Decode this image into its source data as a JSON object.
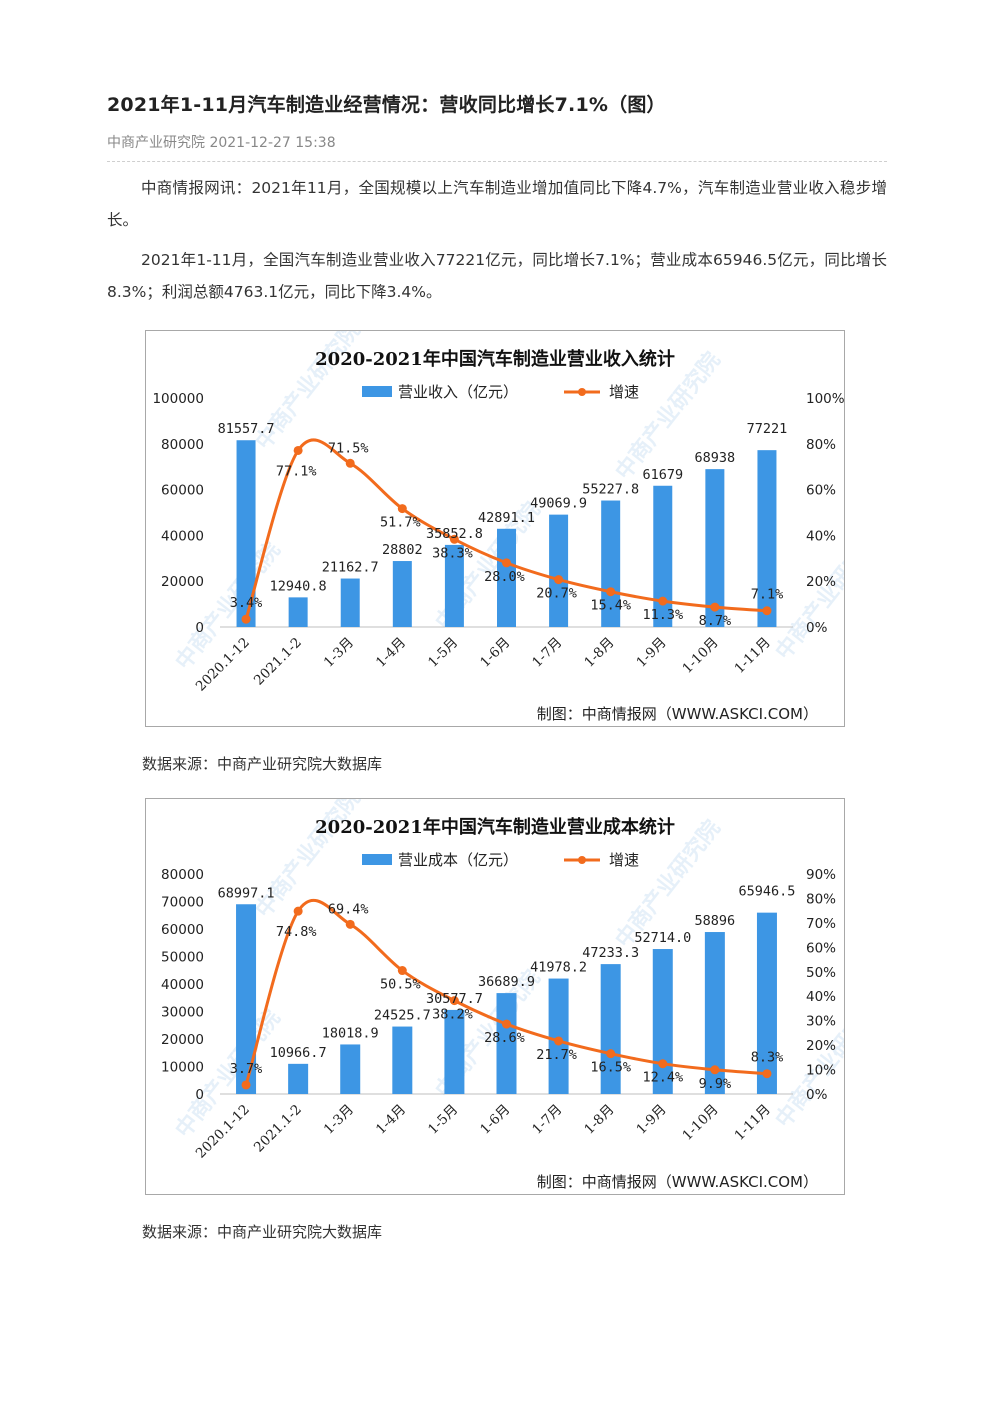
{
  "article": {
    "title": "2021年1-11月汽车制造业经营情况：营收同比增长7.1%（图）",
    "source_line": "中商产业研究院 2021-12-27 15:38",
    "paragraphs": [
      "中商情报网讯：2021年11月，全国规模以上汽车制造业增加值同比下降4.7%，汽车制造业营业收入稳步增长。",
      "2021年1-11月，全国汽车制造业营业收入77221亿元，同比增长7.1%；营业成本65946.5亿元，同比增长8.3%；利润总额4763.1亿元，同比下降3.4%。"
    ],
    "data_source_1": "数据来源：中商产业研究院大数据库",
    "data_source_2": "数据来源：中商产业研究院大数据库"
  },
  "watermark": {
    "text": "中商产业研究院"
  },
  "colors": {
    "bar": "#3d96e4",
    "line": "#f26b1d",
    "axis_text": "#222222"
  },
  "chart_data": [
    {
      "type": "bar",
      "title": "2020-2021年中国汽车制造业营业收入统计",
      "credit": "制图：中商情报网（WWW.ASKCI.COM）",
      "categories": [
        "2020.1-12",
        "2021.1-2",
        "1-3月",
        "1-4月",
        "1-5月",
        "1-6月",
        "1-7月",
        "1-8月",
        "1-9月",
        "1-10月",
        "1-11月"
      ],
      "series": [
        {
          "name": "营业收入（亿元）",
          "type": "bar",
          "axis": "left",
          "values": [
            81557.7,
            12940.8,
            21162.7,
            28802,
            35852.8,
            42891.1,
            49069.9,
            55227.8,
            61679,
            68938,
            77221
          ],
          "labels": [
            "81557.7",
            "12940.8",
            "21162.7",
            "28802",
            "35852.8",
            "42891.1",
            "49069.9",
            "55227.8",
            "61679",
            "68938",
            "77221"
          ]
        },
        {
          "name": "增速",
          "type": "line",
          "axis": "right",
          "values": [
            3.4,
            77.1,
            71.5,
            51.7,
            38.3,
            28.0,
            20.7,
            15.4,
            11.3,
            8.7,
            7.1
          ],
          "labels": [
            "3.4%",
            "77.1%",
            "71.5%",
            "51.7%",
            "38.3%",
            "28.0%",
            "20.7%",
            "15.4%",
            "11.3%",
            "8.7%",
            "7.1%"
          ]
        }
      ],
      "ylim_left": [
        0,
        100000
      ],
      "ylim_right": [
        0,
        100
      ],
      "left_ticks": [
        "0",
        "20000",
        "40000",
        "60000",
        "80000",
        "100000"
      ],
      "right_ticks": [
        "0%",
        "20%",
        "40%",
        "60%",
        "80%",
        "100%"
      ],
      "legend_position": "top-center",
      "grid": false
    },
    {
      "type": "bar",
      "title": "2020-2021年中国汽车制造业营业成本统计",
      "credit": "制图：中商情报网（WWW.ASKCI.COM）",
      "categories": [
        "2020.1-12",
        "2021.1-2",
        "1-3月",
        "1-4月",
        "1-5月",
        "1-6月",
        "1-7月",
        "1-8月",
        "1-9月",
        "1-10月",
        "1-11月"
      ],
      "series": [
        {
          "name": "营业成本（亿元）",
          "type": "bar",
          "axis": "left",
          "values": [
            68997.1,
            10966.7,
            18018.9,
            24525.7,
            30577.7,
            36689.9,
            41978.2,
            47233.3,
            52714.0,
            58896,
            65946.5
          ],
          "labels": [
            "68997.1",
            "10966.7",
            "18018.9",
            "24525.7",
            "30577.7",
            "36689.9",
            "41978.2",
            "47233.3",
            "52714.0",
            "58896",
            "65946.5"
          ]
        },
        {
          "name": "增速",
          "type": "line",
          "axis": "right",
          "values": [
            3.7,
            74.8,
            69.4,
            50.5,
            38.2,
            28.6,
            21.7,
            16.5,
            12.4,
            9.9,
            8.3
          ],
          "labels": [
            "3.7%",
            "74.8%",
            "69.4%",
            "50.5%",
            "38.2%",
            "28.6%",
            "21.7%",
            "16.5%",
            "12.4%",
            "9.9%",
            "8.3%"
          ]
        }
      ],
      "ylim_left": [
        0,
        80000
      ],
      "ylim_right": [
        0,
        90
      ],
      "left_ticks": [
        "0",
        "10000",
        "20000",
        "30000",
        "40000",
        "50000",
        "60000",
        "70000",
        "80000"
      ],
      "right_ticks": [
        "0%",
        "10%",
        "20%",
        "30%",
        "40%",
        "50%",
        "60%",
        "70%",
        "80%",
        "90%"
      ],
      "legend_position": "top-center",
      "grid": false
    }
  ]
}
